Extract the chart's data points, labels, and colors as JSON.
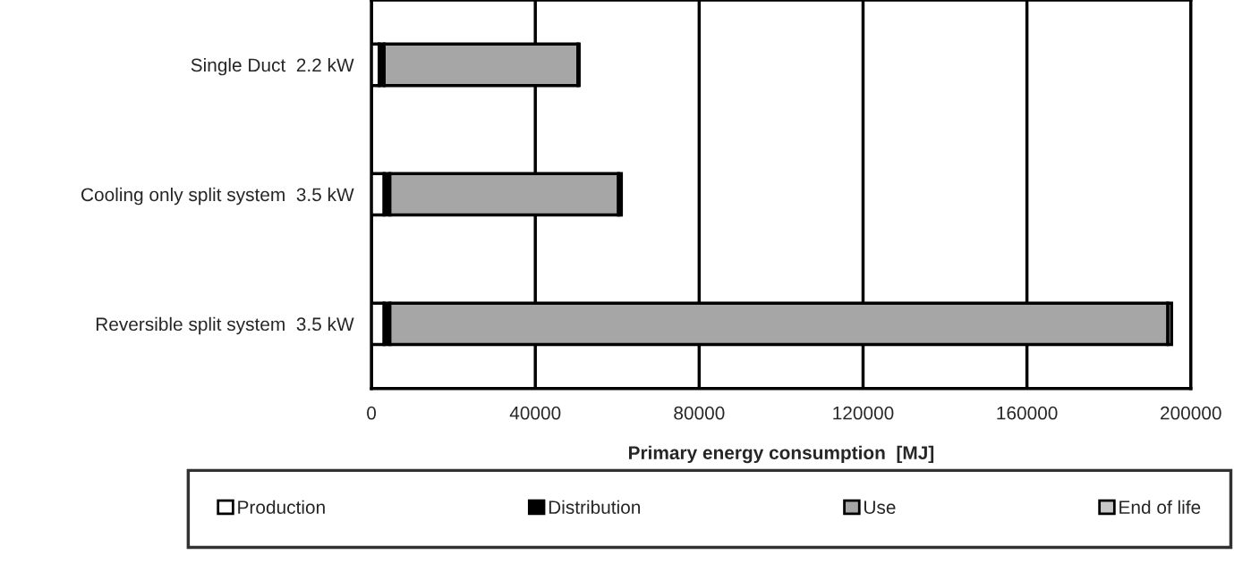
{
  "chart_data": {
    "type": "bar",
    "orientation": "horizontal",
    "stacked": true,
    "categories": [
      "Single Duct  2.2 kW",
      "Cooling only split system  3.5 kW",
      "Reversible split system  3.5 kW"
    ],
    "series": [
      {
        "name": "Production",
        "color": "#ffffff",
        "values": [
          1900,
          3100,
          3100
        ]
      },
      {
        "name": "Distribution",
        "color": "#000000",
        "values": [
          1200,
          1400,
          1400
        ]
      },
      {
        "name": "Use",
        "color": "#a6a6a6",
        "values": [
          47300,
          55800,
          189900
        ]
      },
      {
        "name": "End of life",
        "color": "#c8c8c8",
        "values": [
          300,
          700,
          900
        ]
      }
    ],
    "xlabel": "Primary energy consumption  [MJ]",
    "xlim": [
      0,
      200000
    ],
    "xticks": [
      0,
      40000,
      80000,
      120000,
      160000,
      200000
    ],
    "grid": "x",
    "legend": "bottom"
  }
}
